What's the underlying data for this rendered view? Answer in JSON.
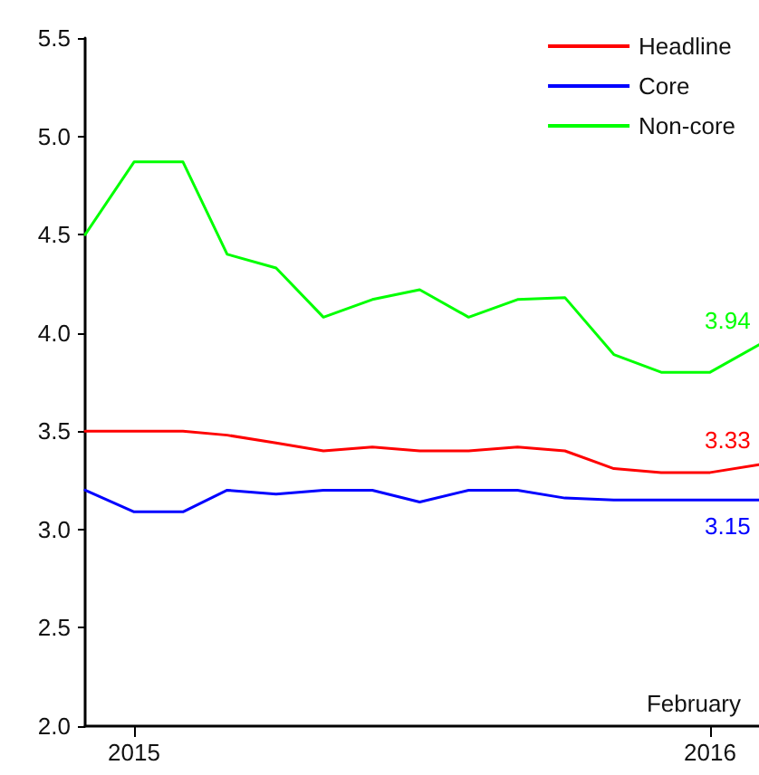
{
  "chart_data": {
    "type": "line",
    "x": [
      "2014-12",
      "2015-01",
      "2015-02",
      "2015-03",
      "2015-04",
      "2015-05",
      "2015-06",
      "2015-07",
      "2015-08",
      "2015-09",
      "2015-10",
      "2015-11",
      "2015-12",
      "2016-01",
      "2016-02"
    ],
    "series": [
      {
        "name": "Headline",
        "color": "#ff0000",
        "values": [
          3.5,
          3.5,
          3.5,
          3.48,
          3.44,
          3.4,
          3.42,
          3.4,
          3.4,
          3.42,
          3.4,
          3.31,
          3.29,
          3.29,
          3.33
        ],
        "value_labels": [
          null,
          null,
          null,
          null,
          null,
          null,
          null,
          null,
          null,
          null,
          null,
          null,
          null,
          null,
          "3.33"
        ]
      },
      {
        "name": "Core",
        "color": "#0000ff",
        "values": [
          3.2,
          3.09,
          3.09,
          3.2,
          3.18,
          3.2,
          3.2,
          3.14,
          3.2,
          3.2,
          3.16,
          3.15,
          3.15,
          3.15,
          3.15
        ],
        "value_labels": [
          null,
          null,
          null,
          null,
          null,
          null,
          null,
          null,
          null,
          null,
          null,
          null,
          null,
          null,
          "3.15"
        ]
      },
      {
        "name": "Non-core",
        "color": "#00ff00",
        "values": [
          4.5,
          4.87,
          4.87,
          4.4,
          4.33,
          4.08,
          4.17,
          4.22,
          4.08,
          4.17,
          4.18,
          3.89,
          3.8,
          3.8,
          3.94
        ],
        "value_labels": [
          null,
          null,
          null,
          null,
          null,
          null,
          null,
          null,
          null,
          null,
          null,
          null,
          null,
          null,
          "3.94"
        ]
      }
    ],
    "xlim": [
      "2014-12",
      "2016-02"
    ],
    "xticks": [
      {
        "value": "2015-01",
        "label": "2015"
      },
      {
        "value": "2016-01",
        "label": "2016"
      }
    ],
    "ylim": [
      2,
      5.5
    ],
    "yticks": [
      {
        "value": 2,
        "label": "2.0"
      },
      2.5,
      {
        "value": 3,
        "label": "3.0"
      },
      3.5,
      {
        "value": 4,
        "label": "4.0"
      },
      4.5,
      {
        "value": 5,
        "label": "5.0"
      },
      5.5
    ],
    "annotations": [
      "February"
    ],
    "legend": "top right",
    "grid": false,
    "marker": "none",
    "line_style": "solid"
  }
}
